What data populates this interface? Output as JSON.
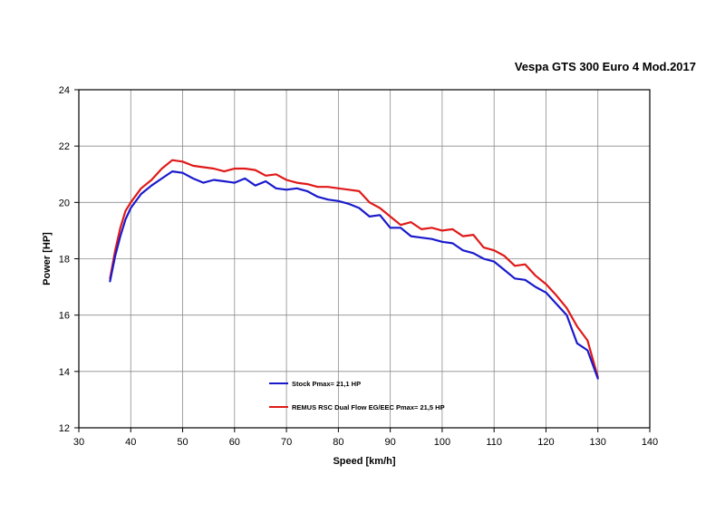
{
  "chart_data": {
    "type": "line",
    "title": "Vespa GTS 300 Euro 4 Mod.2017",
    "xlabel": "Speed [km/h]",
    "ylabel": "Power [HP]",
    "xlim": [
      30,
      140
    ],
    "ylim": [
      12,
      24
    ],
    "xticks": [
      "30",
      "40",
      "50",
      "60",
      "70",
      "80",
      "90",
      "100",
      "110",
      "120",
      "130",
      "140"
    ],
    "yticks": [
      "12",
      "14",
      "16",
      "18",
      "20",
      "22",
      "24"
    ],
    "grid": true,
    "legend_position": "bottom-center",
    "series": [
      {
        "name": "Stock Pmax= 21,1 HP",
        "color": "#1a1acc",
        "x": [
          36,
          37,
          38,
          39,
          40,
          42,
          44,
          46,
          48,
          50,
          52,
          54,
          56,
          58,
          60,
          62,
          64,
          66,
          68,
          70,
          72,
          74,
          76,
          78,
          80,
          82,
          84,
          86,
          88,
          90,
          92,
          94,
          96,
          98,
          100,
          102,
          104,
          106,
          108,
          110,
          112,
          114,
          116,
          118,
          120,
          122,
          124,
          126,
          128,
          130
        ],
        "y": [
          17.2,
          18.1,
          18.8,
          19.4,
          19.8,
          20.3,
          20.6,
          20.85,
          21.1,
          21.05,
          20.85,
          20.7,
          20.8,
          20.75,
          20.7,
          20.85,
          20.6,
          20.75,
          20.5,
          20.45,
          20.5,
          20.4,
          20.2,
          20.1,
          20.05,
          19.95,
          19.8,
          19.5,
          19.55,
          19.1,
          19.1,
          18.8,
          18.75,
          18.7,
          18.6,
          18.55,
          18.3,
          18.2,
          18.0,
          17.9,
          17.6,
          17.3,
          17.25,
          17.0,
          16.8,
          16.4,
          16.0,
          15.0,
          14.75,
          13.75
        ]
      },
      {
        "name": "REMUS RSC Dual Flow EG/EEC Pmax=  21,5 HP",
        "color": "#e01919",
        "x": [
          36,
          37,
          38,
          39,
          40,
          42,
          44,
          46,
          48,
          50,
          52,
          54,
          56,
          58,
          60,
          62,
          64,
          66,
          68,
          70,
          72,
          74,
          76,
          78,
          80,
          82,
          84,
          86,
          88,
          90,
          92,
          94,
          96,
          98,
          100,
          102,
          104,
          106,
          108,
          110,
          112,
          114,
          116,
          118,
          120,
          122,
          124,
          126,
          128,
          130
        ],
        "y": [
          17.3,
          18.3,
          19.1,
          19.7,
          20.0,
          20.5,
          20.8,
          21.2,
          21.5,
          21.45,
          21.3,
          21.25,
          21.2,
          21.1,
          21.2,
          21.2,
          21.15,
          20.95,
          21.0,
          20.8,
          20.7,
          20.65,
          20.55,
          20.55,
          20.5,
          20.45,
          20.4,
          20.0,
          19.8,
          19.5,
          19.2,
          19.3,
          19.05,
          19.1,
          19.0,
          19.05,
          18.8,
          18.85,
          18.4,
          18.3,
          18.1,
          17.75,
          17.8,
          17.4,
          17.1,
          16.7,
          16.25,
          15.6,
          15.1,
          13.8
        ]
      }
    ]
  }
}
